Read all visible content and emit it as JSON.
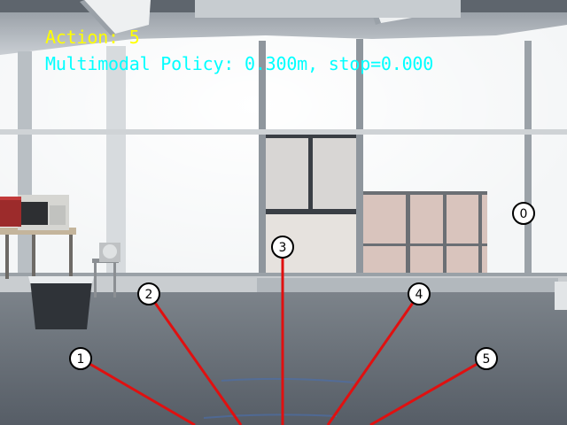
{
  "overlay": {
    "action_text": "Action: 5",
    "policy_text": "Multimodal Policy: 0.300m, stop=0.000",
    "action_color": "#ffff00",
    "policy_color": "#00ffff"
  },
  "actions": {
    "ray_color": "#e01010",
    "labels": [
      "0",
      "1",
      "2",
      "3",
      "4",
      "5"
    ]
  }
}
